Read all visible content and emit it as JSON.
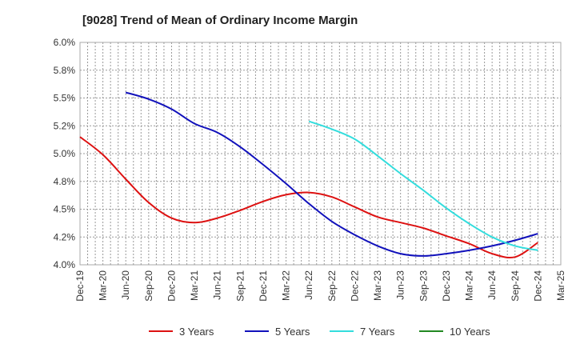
{
  "chart_data": {
    "type": "line",
    "title": "[9028]  Trend of Mean of Ordinary Income Margin",
    "xlabel": "",
    "ylabel": "",
    "x_ticks": [
      "Dec-19",
      "Mar-20",
      "Jun-20",
      "Sep-20",
      "Dec-20",
      "Mar-21",
      "Jun-21",
      "Sep-21",
      "Dec-21",
      "Mar-22",
      "Jun-22",
      "Sep-22",
      "Dec-22",
      "Mar-23",
      "Jun-23",
      "Sep-23",
      "Dec-23",
      "Mar-24",
      "Jun-24",
      "Sep-24",
      "Dec-24",
      "Mar-25"
    ],
    "y_ticks": [
      "4.0%",
      "4.2%",
      "4.5%",
      "4.8%",
      "5.0%",
      "5.2%",
      "5.5%",
      "5.8%",
      "6.0%"
    ],
    "y_tick_values": [
      4.0,
      4.25,
      4.5,
      4.75,
      5.0,
      5.25,
      5.5,
      5.75,
      6.0
    ],
    "ylim": [
      4.0,
      6.0
    ],
    "grid": true,
    "legend_position": "bottom",
    "series": [
      {
        "name": "3 Years",
        "color": "#dd1111",
        "points": [
          [
            "Dec-19",
            5.15
          ],
          [
            "Mar-20",
            4.99
          ],
          [
            "Jun-20",
            4.77
          ],
          [
            "Sep-20",
            4.56
          ],
          [
            "Dec-20",
            4.42
          ],
          [
            "Mar-21",
            4.38
          ],
          [
            "Jun-21",
            4.42
          ],
          [
            "Sep-21",
            4.49
          ],
          [
            "Dec-21",
            4.57
          ],
          [
            "Mar-22",
            4.63
          ],
          [
            "Jun-22",
            4.65
          ],
          [
            "Sep-22",
            4.61
          ],
          [
            "Dec-22",
            4.52
          ],
          [
            "Mar-23",
            4.43
          ],
          [
            "Jun-23",
            4.38
          ],
          [
            "Sep-23",
            4.33
          ],
          [
            "Dec-23",
            4.26
          ],
          [
            "Mar-24",
            4.19
          ],
          [
            "Jun-24",
            4.1
          ],
          [
            "Sep-24",
            4.07
          ],
          [
            "Dec-24",
            4.2
          ]
        ]
      },
      {
        "name": "5 Years",
        "color": "#1111bb",
        "points": [
          [
            "Jun-20",
            5.55
          ],
          [
            "Sep-20",
            5.49
          ],
          [
            "Dec-20",
            5.4
          ],
          [
            "Mar-21",
            5.27
          ],
          [
            "Jun-21",
            5.19
          ],
          [
            "Sep-21",
            5.06
          ],
          [
            "Dec-21",
            4.9
          ],
          [
            "Mar-22",
            4.73
          ],
          [
            "Jun-22",
            4.55
          ],
          [
            "Sep-22",
            4.39
          ],
          [
            "Dec-22",
            4.27
          ],
          [
            "Mar-23",
            4.17
          ],
          [
            "Jun-23",
            4.1
          ],
          [
            "Sep-23",
            4.08
          ],
          [
            "Dec-23",
            4.1
          ],
          [
            "Mar-24",
            4.13
          ],
          [
            "Jun-24",
            4.17
          ],
          [
            "Sep-24",
            4.22
          ],
          [
            "Dec-24",
            4.28
          ]
        ]
      },
      {
        "name": "7 Years",
        "color": "#33dddd",
        "points": [
          [
            "Jun-22",
            5.29
          ],
          [
            "Sep-22",
            5.22
          ],
          [
            "Dec-22",
            5.13
          ],
          [
            "Mar-23",
            4.98
          ],
          [
            "Jun-23",
            4.82
          ],
          [
            "Sep-23",
            4.67
          ],
          [
            "Dec-23",
            4.51
          ],
          [
            "Mar-24",
            4.37
          ],
          [
            "Jun-24",
            4.25
          ],
          [
            "Sep-24",
            4.17
          ],
          [
            "Dec-24",
            4.13
          ]
        ]
      },
      {
        "name": "10 Years",
        "color": "#228822",
        "points": []
      }
    ]
  }
}
